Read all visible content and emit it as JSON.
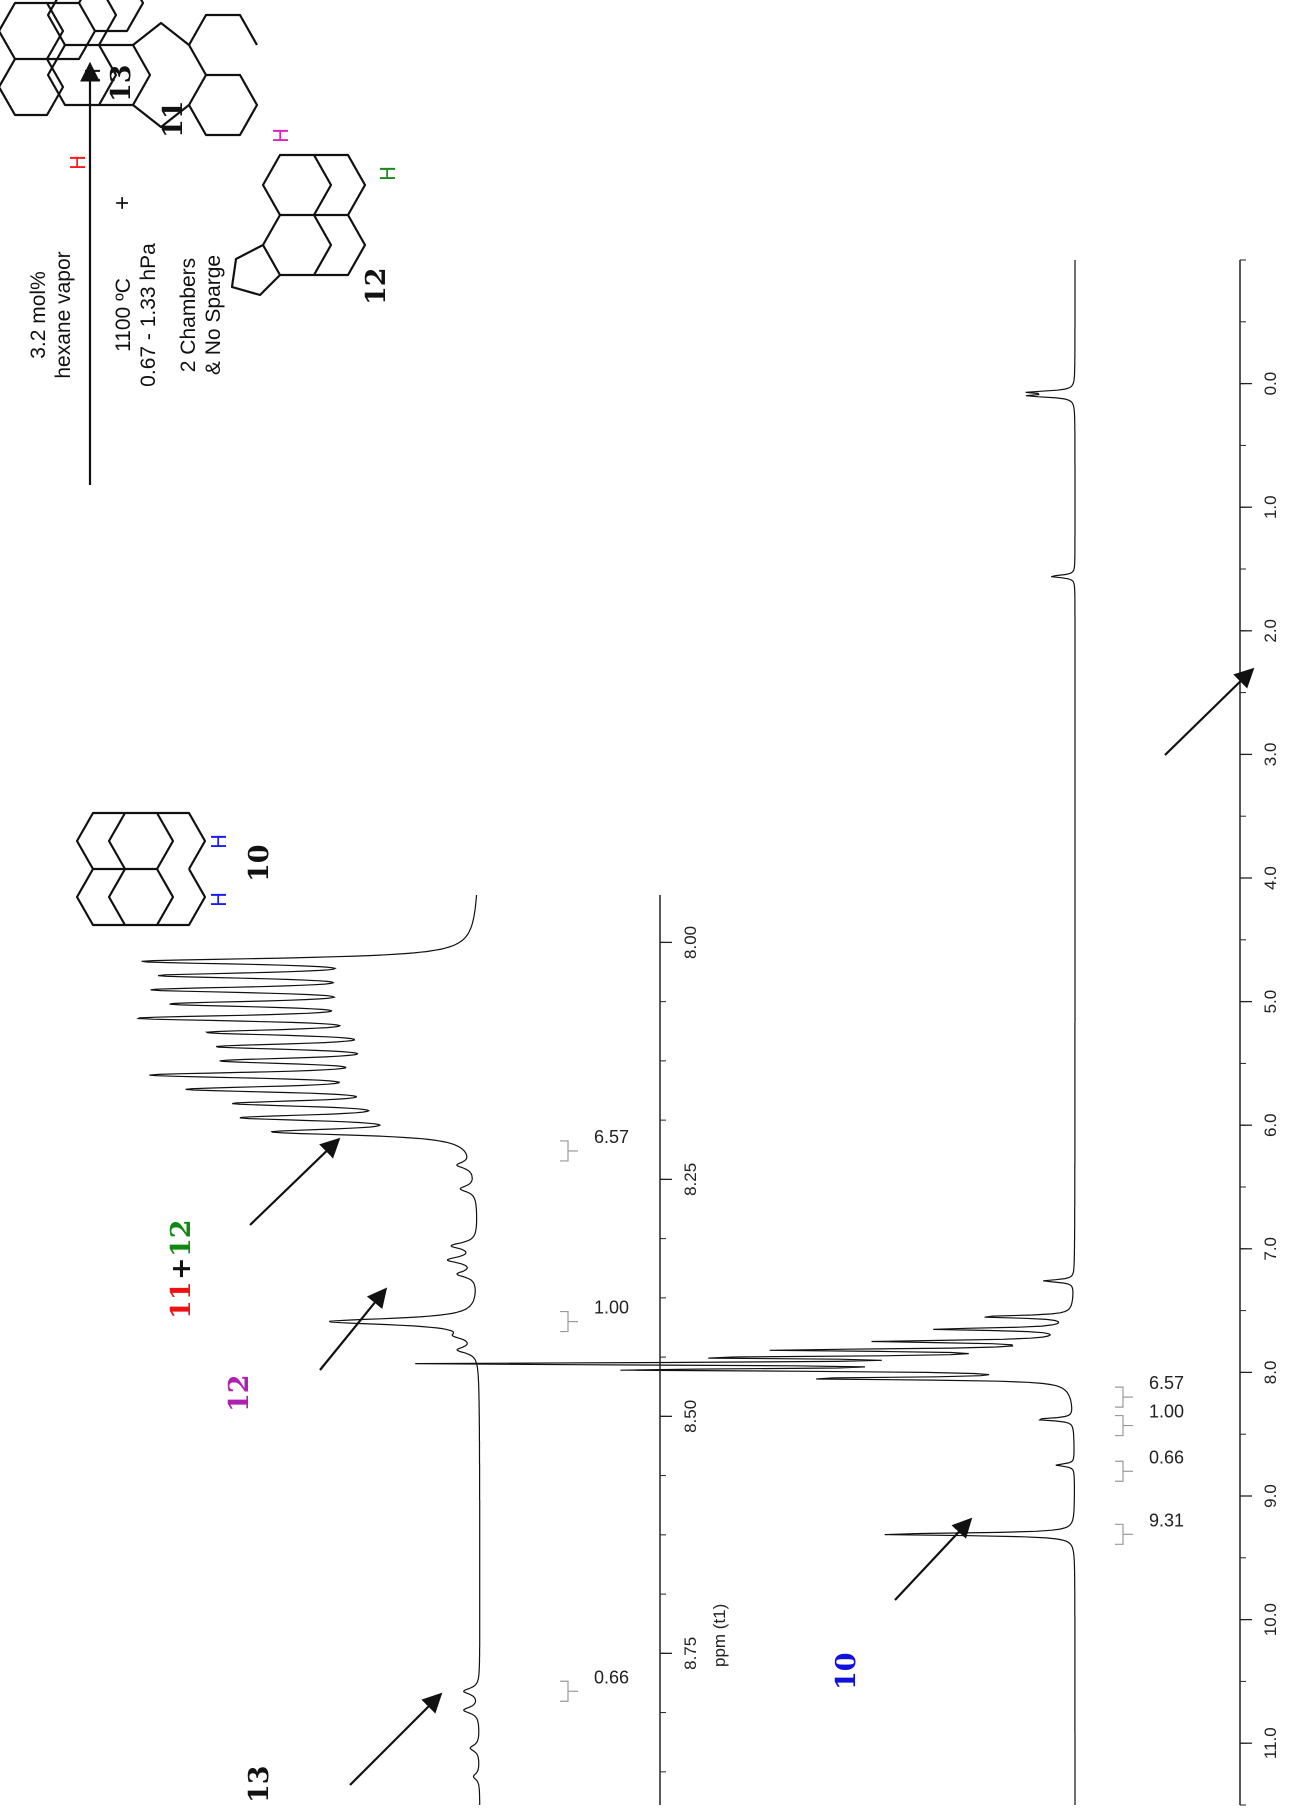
{
  "scheme": {
    "conditions": [
      "3.2 mol%",
      "hexane vapor",
      "1100 ºC",
      "0.67 - 1.33 hPa",
      "2 Chambers",
      "& No Sparge"
    ],
    "plus": "+",
    "h_symbol": "H",
    "compounds": [
      {
        "id": "10",
        "color": "#111111",
        "h_color": "#1a1aff"
      },
      {
        "id": "11",
        "color": "#111111",
        "h_color": "#ff1a1a"
      },
      {
        "id": "12",
        "color": "#111111",
        "h_colors": [
          "#1a8a1a",
          "#e020c0"
        ]
      },
      {
        "id": "13",
        "color": "#111111",
        "h_color": "#111111"
      }
    ]
  },
  "colors": {
    "11": "#ee1111",
    "12_green": "#118811",
    "12_magenta": "#b020b0",
    "10": "#1111dd"
  },
  "annotations": {
    "inset": [
      "11",
      "+",
      "12",
      "12",
      "13"
    ],
    "full": [
      "10"
    ]
  },
  "chart_data": [
    {
      "type": "line",
      "name": "full 1H NMR spectrum",
      "xlabel": "ppm (t1)",
      "xlim": [
        11.5,
        -1.0
      ],
      "x_ticks": [
        11.0,
        10.0,
        9.0,
        8.0,
        7.0,
        6.0,
        5.0,
        4.0,
        3.0,
        2.0,
        1.0,
        0.0
      ],
      "x_tick_labels": [
        "11.0",
        "10.0",
        "9.0",
        "8.0",
        "7.0",
        "6.0",
        "5.0",
        "4.0",
        "3.0",
        "2.0",
        "1.0",
        "0.0"
      ],
      "peaks": [
        {
          "ppm": 9.31,
          "height": 0.32
        },
        {
          "ppm": 8.75,
          "height": 0.03
        },
        {
          "ppm": 8.38,
          "height": 0.06
        },
        {
          "ppm": 8.05,
          "height": 0.42
        },
        {
          "ppm": 7.98,
          "height": 0.68
        },
        {
          "ppm": 7.93,
          "height": 1.0
        },
        {
          "ppm": 7.88,
          "height": 0.55
        },
        {
          "ppm": 7.82,
          "height": 0.45
        },
        {
          "ppm": 7.75,
          "height": 0.3
        },
        {
          "ppm": 7.65,
          "height": 0.22
        },
        {
          "ppm": 7.55,
          "height": 0.15
        },
        {
          "ppm": 7.26,
          "height": 0.05
        },
        {
          "ppm": 1.56,
          "height": 0.04
        },
        {
          "ppm": 0.1,
          "height": 0.07
        },
        {
          "ppm": 0.07,
          "height": 0.07
        }
      ],
      "integrals": [
        {
          "ppm": 8.2,
          "value": "6.57"
        },
        {
          "ppm": 8.43,
          "value": "1.00"
        },
        {
          "ppm": 8.8,
          "value": "0.66"
        },
        {
          "ppm": 9.31,
          "value": "9.31"
        }
      ]
    },
    {
      "type": "line",
      "name": "inset expansion",
      "xlabel": "ppm (t1)",
      "xlim": [
        8.91,
        7.95
      ],
      "x_ticks": [
        8.75,
        8.5,
        8.25,
        8.0
      ],
      "x_tick_labels": [
        "8.75",
        "8.50",
        "8.25",
        "8.00"
      ],
      "peaks": [
        {
          "ppm": 8.02,
          "height": 1.0
        },
        {
          "ppm": 8.035,
          "height": 0.88
        },
        {
          "ppm": 8.05,
          "height": 0.9
        },
        {
          "ppm": 8.065,
          "height": 0.83
        },
        {
          "ppm": 8.08,
          "height": 0.95
        },
        {
          "ppm": 8.095,
          "height": 0.72
        },
        {
          "ppm": 8.11,
          "height": 0.7
        },
        {
          "ppm": 8.125,
          "height": 0.68
        },
        {
          "ppm": 8.14,
          "height": 0.92
        },
        {
          "ppm": 8.155,
          "height": 0.8
        },
        {
          "ppm": 8.17,
          "height": 0.66
        },
        {
          "ppm": 8.185,
          "height": 0.66
        },
        {
          "ppm": 8.2,
          "height": 0.6
        },
        {
          "ppm": 8.235,
          "height": 0.05
        },
        {
          "ppm": 8.26,
          "height": 0.05
        },
        {
          "ppm": 8.32,
          "height": 0.08
        },
        {
          "ppm": 8.335,
          "height": 0.09
        },
        {
          "ppm": 8.35,
          "height": 0.06
        },
        {
          "ppm": 8.4,
          "height": 0.48
        },
        {
          "ppm": 8.415,
          "height": 0.05
        },
        {
          "ppm": 8.43,
          "height": 0.06
        },
        {
          "ppm": 8.79,
          "height": 0.05
        },
        {
          "ppm": 8.81,
          "height": 0.05
        },
        {
          "ppm": 8.85,
          "height": 0.03
        },
        {
          "ppm": 8.88,
          "height": 0.02
        }
      ],
      "integrals": [
        {
          "ppm": 8.22,
          "value": "6.57"
        },
        {
          "ppm": 8.4,
          "value": "1.00"
        },
        {
          "ppm": 8.79,
          "value": "0.66"
        }
      ]
    }
  ]
}
